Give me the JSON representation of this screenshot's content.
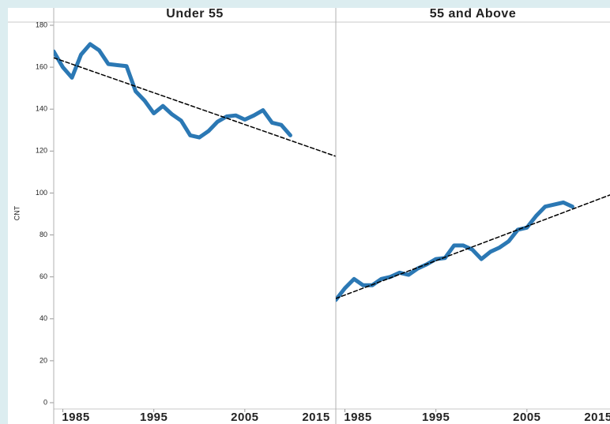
{
  "chart_data": [
    {
      "type": "line",
      "title": "Under 55",
      "ylabel": "CNT",
      "ylim": [
        0,
        180
      ],
      "yticks": [
        0,
        20,
        40,
        60,
        80,
        100,
        120,
        140,
        160,
        180
      ],
      "xlim": [
        1984,
        2015
      ],
      "xticks": [
        1985,
        1995,
        2005,
        2015
      ],
      "series": [
        {
          "color": "#2b78b4",
          "x": [
            1984,
            1985,
            1986,
            1987,
            1988,
            1989,
            1990,
            1991,
            1992,
            1993,
            1994,
            1995,
            1996,
            1997,
            1998,
            1999,
            2000,
            2001,
            2002,
            2003,
            2004,
            2005,
            2006,
            2007,
            2008,
            2009,
            2010
          ],
          "values": [
            167.5,
            160,
            155,
            166,
            171,
            168,
            161.5,
            161,
            160.5,
            148.5,
            144,
            138,
            141.5,
            137.5,
            134.5,
            127.5,
            126.5,
            129.5,
            134,
            136.5,
            137,
            135,
            137,
            139.5,
            133.5,
            132.5,
            127.5
          ]
        },
        {
          "color": "#000000",
          "dashed": true,
          "x": [
            1984,
            2015
          ],
          "values": [
            164.5,
            117.5
          ]
        }
      ]
    },
    {
      "type": "line",
      "title": "55 and Above",
      "xlim": [
        1984,
        2015
      ],
      "xticks": [
        1985,
        1995,
        2005,
        2015
      ],
      "series": [
        {
          "color": "#2b78b4",
          "x": [
            1984,
            1985,
            1986,
            1987,
            1988,
            1989,
            1990,
            1991,
            1992,
            1993,
            1994,
            1995,
            1996,
            1997,
            1998,
            1999,
            2000,
            2001,
            2002,
            2003,
            2004,
            2005,
            2006,
            2007,
            2008,
            2009,
            2010
          ],
          "values": [
            49,
            54.6,
            59,
            56,
            56,
            59,
            60,
            62,
            61,
            64,
            66,
            68.5,
            69,
            75,
            75,
            73,
            68.5,
            72,
            74,
            77,
            82.5,
            83.5,
            89,
            93.5,
            94.5,
            95.5,
            93.5
          ]
        },
        {
          "color": "#000000",
          "dashed": true,
          "x": [
            1984,
            2015
          ],
          "values": [
            49.7,
            100.5
          ]
        }
      ]
    }
  ]
}
